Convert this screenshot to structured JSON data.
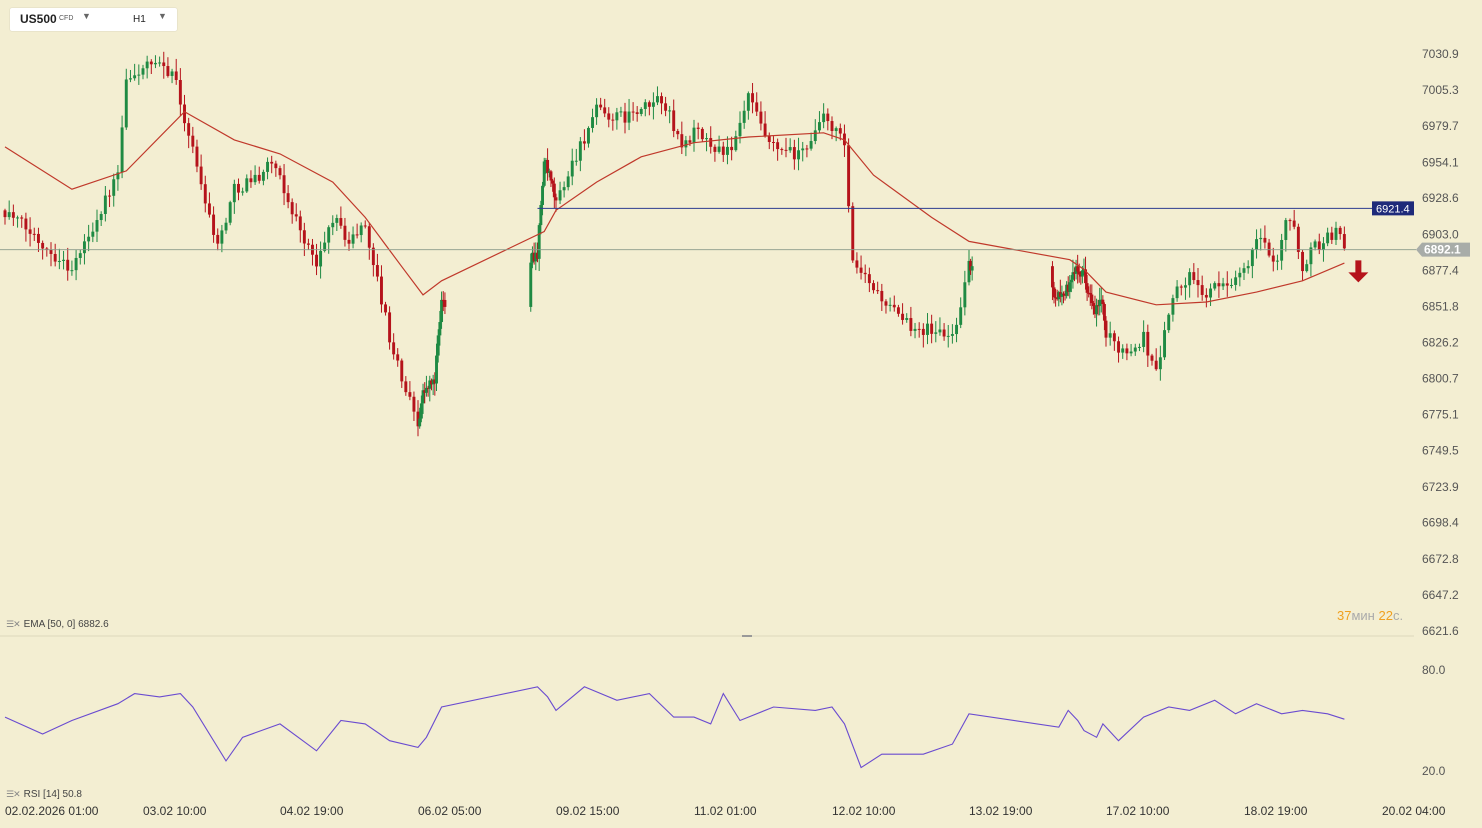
{
  "header": {
    "symbol": "US500",
    "symbol_type": "CFD",
    "timeframe": "H1"
  },
  "indicators": {
    "ema_label": "EMA [50, 0] 6882.6",
    "rsi_label": "RSI [14] 50.8"
  },
  "timer": {
    "minutes": "37",
    "minutes_unit": "мин",
    "seconds": "22",
    "seconds_unit": "с."
  },
  "colors": {
    "background": "#f3eed2",
    "bull": "#1f8a43",
    "bear": "#b5131b",
    "ema": "#c0392b",
    "rsi": "#6a4bd0",
    "resistance": "#2c3b8f",
    "price_badge": "#a8aca8",
    "level_badge": "#1e2a7a",
    "signal_arrow": "#b5131b"
  },
  "chart_data": {
    "type": "candlestick",
    "symbol": "US500",
    "timeframe": "H1",
    "price_ticks": [
      "7030.9",
      "7005.3",
      "6979.7",
      "6954.1",
      "6928.6",
      "6903.0",
      "6877.4",
      "6851.8",
      "6826.2",
      "6800.7",
      "6775.1",
      "6749.5",
      "6723.9",
      "6698.4",
      "6672.8",
      "6647.2",
      "6621.6"
    ],
    "x_labels": [
      "02.02.2026 01:00",
      "03.02 10:00",
      "04.02 19:00",
      "06.02 05:00",
      "09.02 15:00",
      "11.02 01:00",
      "12.02 10:00",
      "13.02 19:00",
      "17.02 10:00",
      "18.02 19:00",
      "20.02 04:00"
    ],
    "current_price": 6892.1,
    "current_price_label": "6892.1",
    "resistance_level": 6921.4,
    "resistance_label": "6921.4",
    "signal": "down",
    "close_path": [
      {
        "x": "02.02.2026 01:00",
        "close": 6920
      },
      {
        "x": "02.02 17:00",
        "close": 6878
      },
      {
        "x": "03.02 04:00",
        "close": 6945
      },
      {
        "x": "03.02 06:00",
        "close": 7010
      },
      {
        "x": "03.02 08:00",
        "close": 7015
      },
      {
        "x": "03.02 10:00",
        "close": 7022
      },
      {
        "x": "03.02 17:00",
        "close": 7020
      },
      {
        "x": "03.02 20:00",
        "close": 6985
      },
      {
        "x": "04.02 04:00",
        "close": 6895
      },
      {
        "x": "04.02 08:00",
        "close": 6935
      },
      {
        "x": "04.02 14:00",
        "close": 6945
      },
      {
        "x": "04.02 17:00",
        "close": 6955
      },
      {
        "x": "04.02 19:00",
        "close": 6940
      },
      {
        "x": "05.02 04:00",
        "close": 6880
      },
      {
        "x": "05.02 08:00",
        "close": 6915
      },
      {
        "x": "05.02 12:00",
        "close": 6898
      },
      {
        "x": "05.02 16:00",
        "close": 6910
      },
      {
        "x": "05.02 22:00",
        "close": 6830
      },
      {
        "x": "06.02 01:00",
        "close": 6800
      },
      {
        "x": "06.02 05:00",
        "close": 6770
      },
      {
        "x": "06.02 08:00",
        "close": 6790
      },
      {
        "x": "06.02 15:00",
        "close": 6800
      },
      {
        "x": "06.02 19:00",
        "close": 6855
      },
      {
        "x": "09.02 04:00",
        "close": 6890
      },
      {
        "x": "09.02 08:00",
        "close": 6955
      },
      {
        "x": "09.02 13:00",
        "close": 6935
      },
      {
        "x": "09.02 15:00",
        "close": 6925
      },
      {
        "x": "09.02 20:00",
        "close": 6960
      },
      {
        "x": "10.02 01:00",
        "close": 6990
      },
      {
        "x": "10.02 06:00",
        "close": 6985
      },
      {
        "x": "10.02 12:00",
        "close": 6990
      },
      {
        "x": "10.02 17:00",
        "close": 7000
      },
      {
        "x": "10.02 22:00",
        "close": 6965
      },
      {
        "x": "11.02 01:00",
        "close": 6975
      },
      {
        "x": "11.02 06:00",
        "close": 6965
      },
      {
        "x": "11.02 10:00",
        "close": 6960
      },
      {
        "x": "11.02 14:00",
        "close": 7000
      },
      {
        "x": "11.02 19:00",
        "close": 6965
      },
      {
        "x": "12.02 02:00",
        "close": 6958
      },
      {
        "x": "12.02 08:00",
        "close": 6985
      },
      {
        "x": "12.02 10:00",
        "close": 6980
      },
      {
        "x": "12.02 13:00",
        "close": 6965
      },
      {
        "x": "12.02 15:00",
        "close": 6880
      },
      {
        "x": "12.02 20:00",
        "close": 6865
      },
      {
        "x": "13.02 03:00",
        "close": 6840
      },
      {
        "x": "13.02 10:00",
        "close": 6835
      },
      {
        "x": "13.02 15:00",
        "close": 6830
      },
      {
        "x": "13.02 19:00",
        "close": 6880
      },
      {
        "x": "16.02 05:00",
        "close": 6860
      },
      {
        "x": "16.02 11:00",
        "close": 6865
      },
      {
        "x": "16.02 15:00",
        "close": 6882
      },
      {
        "x": "16.02 20:00",
        "close": 6875
      },
      {
        "x": "17.02 03:00",
        "close": 6845
      },
      {
        "x": "17.02 07:00",
        "close": 6858
      },
      {
        "x": "17.02 10:00",
        "close": 6830
      },
      {
        "x": "17.02 15:00",
        "close": 6820
      },
      {
        "x": "17.02 19:00",
        "close": 6830
      },
      {
        "x": "17.02 22:00",
        "close": 6805
      },
      {
        "x": "18.02 02:00",
        "close": 6860
      },
      {
        "x": "18.02 06:00",
        "close": 6872
      },
      {
        "x": "18.02 10:00",
        "close": 6860
      },
      {
        "x": "18.02 15:00",
        "close": 6870
      },
      {
        "x": "18.02 19:00",
        "close": 6875
      },
      {
        "x": "18.02 22:00",
        "close": 6900
      },
      {
        "x": "19.02 03:00",
        "close": 6885
      },
      {
        "x": "19.02 05:00",
        "close": 6915
      },
      {
        "x": "19.02 07:00",
        "close": 6905
      },
      {
        "x": "19.02 09:00",
        "close": 6880
      },
      {
        "x": "19.02 12:00",
        "close": 6895
      },
      {
        "x": "19.02 15:00",
        "close": 6900
      },
      {
        "x": "19.02 17:00",
        "close": 6906
      },
      {
        "x": "19.02 19:00",
        "close": 6893
      }
    ],
    "ema": {
      "name": "EMA [50, 0]",
      "last": 6882.6,
      "points": [
        {
          "x": "02.02.2026 01:00",
          "value": 6965
        },
        {
          "x": "02.02 17:00",
          "value": 6935
        },
        {
          "x": "03.02 06:00",
          "value": 6948
        },
        {
          "x": "03.02 20:00",
          "value": 6990
        },
        {
          "x": "04.02 08:00",
          "value": 6970
        },
        {
          "x": "04.02 19:00",
          "value": 6960
        },
        {
          "x": "05.02 08:00",
          "value": 6940
        },
        {
          "x": "05.02 16:00",
          "value": 6915
        },
        {
          "x": "06.02 01:00",
          "value": 6880
        },
        {
          "x": "06.02 08:00",
          "value": 6860
        },
        {
          "x": "06.02 19:00",
          "value": 6870
        },
        {
          "x": "09.02 08:00",
          "value": 6905
        },
        {
          "x": "09.02 15:00",
          "value": 6920
        },
        {
          "x": "10.02 01:00",
          "value": 6940
        },
        {
          "x": "10.02 12:00",
          "value": 6958
        },
        {
          "x": "11.02 01:00",
          "value": 6968
        },
        {
          "x": "11.02 14:00",
          "value": 6972
        },
        {
          "x": "12.02 08:00",
          "value": 6975
        },
        {
          "x": "12.02 13:00",
          "value": 6970
        },
        {
          "x": "12.02 20:00",
          "value": 6945
        },
        {
          "x": "13.02 10:00",
          "value": 6915
        },
        {
          "x": "13.02 19:00",
          "value": 6898
        },
        {
          "x": "16.02 11:00",
          "value": 6885
        },
        {
          "x": "16.02 20:00",
          "value": 6878
        },
        {
          "x": "17.02 10:00",
          "value": 6862
        },
        {
          "x": "17.02 22:00",
          "value": 6853
        },
        {
          "x": "18.02 10:00",
          "value": 6855
        },
        {
          "x": "18.02 22:00",
          "value": 6862
        },
        {
          "x": "19.02 09:00",
          "value": 6870
        },
        {
          "x": "19.02 19:00",
          "value": 6882.6
        }
      ]
    },
    "rsi": {
      "name": "RSI [14]",
      "last": 50.8,
      "ticks": [
        80.0,
        20.0
      ],
      "points": [
        {
          "x": "02.02.2026 01:00",
          "value": 52
        },
        {
          "x": "02.02 10:00",
          "value": 42
        },
        {
          "x": "02.02 17:00",
          "value": 50
        },
        {
          "x": "03.02 04:00",
          "value": 60
        },
        {
          "x": "03.02 08:00",
          "value": 66
        },
        {
          "x": "03.02 14:00",
          "value": 64
        },
        {
          "x": "03.02 19:00",
          "value": 66
        },
        {
          "x": "03.02 22:00",
          "value": 58
        },
        {
          "x": "04.02 06:00",
          "value": 26
        },
        {
          "x": "04.02 10:00",
          "value": 40
        },
        {
          "x": "04.02 19:00",
          "value": 48
        },
        {
          "x": "05.02 04:00",
          "value": 32
        },
        {
          "x": "05.02 10:00",
          "value": 50
        },
        {
          "x": "05.02 16:00",
          "value": 48
        },
        {
          "x": "05.02 22:00",
          "value": 38
        },
        {
          "x": "06.02 05:00",
          "value": 34
        },
        {
          "x": "06.02 10:00",
          "value": 40
        },
        {
          "x": "06.02 19:00",
          "value": 58
        },
        {
          "x": "09.02 04:00",
          "value": 70
        },
        {
          "x": "09.02 10:00",
          "value": 64
        },
        {
          "x": "09.02 15:00",
          "value": 56
        },
        {
          "x": "09.02 22:00",
          "value": 70
        },
        {
          "x": "10.02 06:00",
          "value": 62
        },
        {
          "x": "10.02 14:00",
          "value": 66
        },
        {
          "x": "10.02 20:00",
          "value": 52
        },
        {
          "x": "11.02 01:00",
          "value": 52
        },
        {
          "x": "11.02 05:00",
          "value": 48
        },
        {
          "x": "11.02 08:00",
          "value": 66
        },
        {
          "x": "11.02 12:00",
          "value": 50
        },
        {
          "x": "11.02 20:00",
          "value": 58
        },
        {
          "x": "12.02 06:00",
          "value": 56
        },
        {
          "x": "12.02 10:00",
          "value": 58
        },
        {
          "x": "12.02 13:00",
          "value": 48
        },
        {
          "x": "12.02 17:00",
          "value": 22
        },
        {
          "x": "12.02 22:00",
          "value": 30
        },
        {
          "x": "13.02 08:00",
          "value": 30
        },
        {
          "x": "13.02 15:00",
          "value": 36
        },
        {
          "x": "13.02 19:00",
          "value": 54
        },
        {
          "x": "16.02 04:00",
          "value": 46
        },
        {
          "x": "16.02 10:00",
          "value": 56
        },
        {
          "x": "16.02 16:00",
          "value": 50
        },
        {
          "x": "16.02 20:00",
          "value": 44
        },
        {
          "x": "17.02 04:00",
          "value": 40
        },
        {
          "x": "17.02 08:00",
          "value": 48
        },
        {
          "x": "17.02 13:00",
          "value": 38
        },
        {
          "x": "17.02 19:00",
          "value": 52
        },
        {
          "x": "18.02 01:00",
          "value": 58
        },
        {
          "x": "18.02 06:00",
          "value": 56
        },
        {
          "x": "18.02 12:00",
          "value": 62
        },
        {
          "x": "18.02 17:00",
          "value": 54
        },
        {
          "x": "18.02 22:00",
          "value": 60
        },
        {
          "x": "19.02 04:00",
          "value": 54
        },
        {
          "x": "19.02 09:00",
          "value": 56
        },
        {
          "x": "19.02 15:00",
          "value": 54
        },
        {
          "x": "19.02 19:00",
          "value": 50.8
        }
      ]
    }
  }
}
